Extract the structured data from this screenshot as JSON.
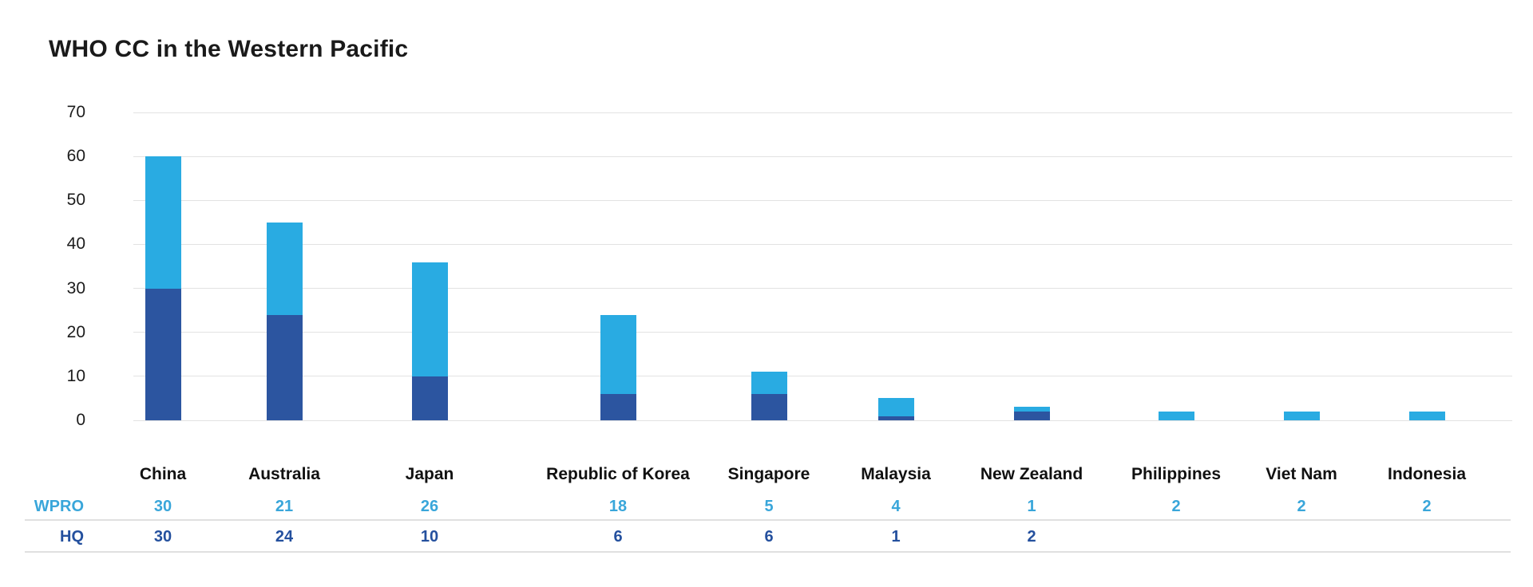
{
  "title": "WHO CC in the Western Pacific",
  "chart_data": {
    "type": "bar",
    "stacked": true,
    "title": "WHO CC in the Western Pacific",
    "categories": [
      "China",
      "Australia",
      "Japan",
      "Republic of Korea",
      "Singapore",
      "Malaysia",
      "New Zealand",
      "Philippines",
      "Viet Nam",
      "Indonesia"
    ],
    "series": [
      {
        "name": "WPRO",
        "color": "#29ABE2",
        "stack_order": "top",
        "values": [
          30,
          21,
          26,
          18,
          5,
          4,
          1,
          2,
          2,
          2
        ]
      },
      {
        "name": "HQ",
        "color": "#2C55A0",
        "stack_order": "bottom",
        "values": [
          30,
          24,
          10,
          6,
          6,
          1,
          2,
          null,
          null,
          null
        ]
      }
    ],
    "totals": [
      60,
      45,
      36,
      24,
      11,
      5,
      3,
      2,
      2,
      2
    ],
    "xlabel": "",
    "ylabel": "",
    "ylim": [
      0,
      70
    ],
    "yticks": [
      70,
      60,
      50,
      40,
      30,
      20,
      10,
      0
    ],
    "grid": true,
    "legend_position": "data-table-below-chart"
  },
  "data_table": {
    "header_row": [
      "China",
      "Australia",
      "Japan",
      "Republic of Korea",
      "Singapore",
      "Malaysia",
      "New Zealand",
      "Philippines",
      "Viet Nam",
      "Indonesia"
    ],
    "rows": [
      {
        "label": "WPRO",
        "text_color": "#39A6DA",
        "values": [
          "30",
          "21",
          "26",
          "18",
          "5",
          "4",
          "1",
          "2",
          "2",
          "2"
        ]
      },
      {
        "label": "HQ",
        "text_color": "#24509E",
        "values": [
          "30",
          "24",
          "10",
          "6",
          "6",
          "1",
          "2",
          "",
          "",
          ""
        ]
      }
    ]
  },
  "colors": {
    "background": "#FFFFFF",
    "title_text": "#1A1A1A",
    "axis_text": "#1C1C1C",
    "header_text": "#111111",
    "wpro_bar": "#29ABE2",
    "hq_bar": "#2C55A0",
    "gridline": "#E2E2E2",
    "divider_line": "#E0E0E0"
  }
}
